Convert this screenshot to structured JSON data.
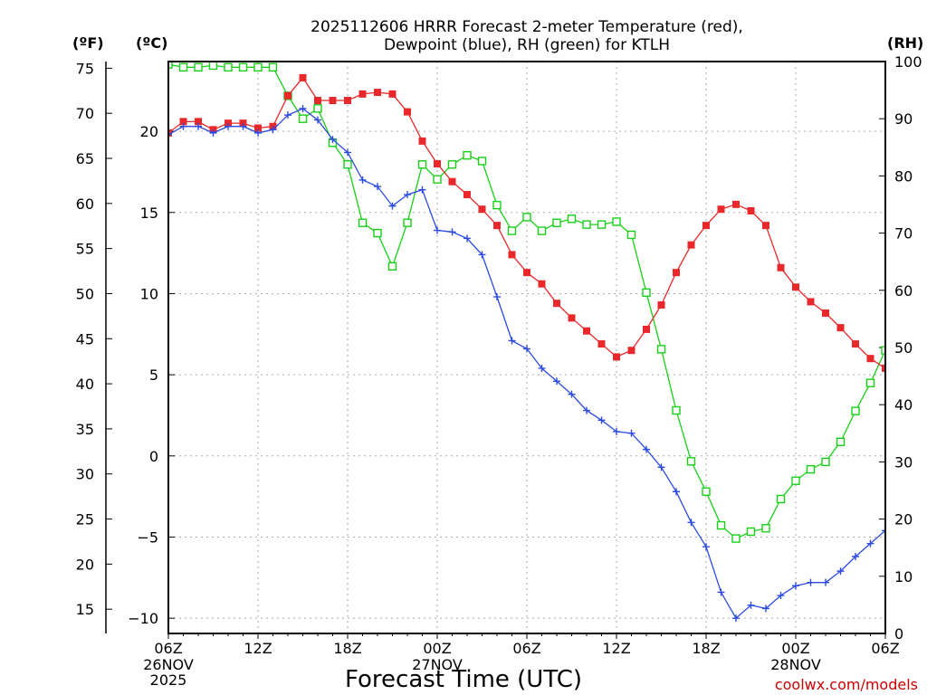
{
  "chart_data": {
    "type": "line",
    "title_line1": "2025112606 HRRR Forecast 2-meter Temperature (red),",
    "title_line2": "Dewpoint (blue), RH (green) for KTLH",
    "xlabel": "Forecast Time (UTC)",
    "credit": "coolwx.com/models",
    "units": {
      "fahrenheit": "(ºF)",
      "celsius": "(ºC)",
      "rh": "(RH)"
    },
    "x_hours_range": [
      0,
      48
    ],
    "x_ticks": [
      {
        "hour": 0,
        "label": "06Z",
        "date": "26NOV",
        "year": "2025"
      },
      {
        "hour": 6,
        "label": "12Z",
        "date": "",
        "year": ""
      },
      {
        "hour": 12,
        "label": "18Z",
        "date": "",
        "year": ""
      },
      {
        "hour": 18,
        "label": "00Z",
        "date": "27NOV",
        "year": ""
      },
      {
        "hour": 24,
        "label": "06Z",
        "date": "",
        "year": ""
      },
      {
        "hour": 30,
        "label": "12Z",
        "date": "",
        "year": ""
      },
      {
        "hour": 36,
        "label": "18Z",
        "date": "",
        "year": ""
      },
      {
        "hour": 42,
        "label": "00Z",
        "date": "28NOV",
        "year": ""
      },
      {
        "hour": 48,
        "label": "06Z",
        "date": "",
        "year": ""
      }
    ],
    "celsius_range": [
      -10.94,
      24.3
    ],
    "celsius_ticks": [
      {
        "value": 20,
        "label": "20"
      },
      {
        "value": 15,
        "label": "15"
      },
      {
        "value": 10,
        "label": "10"
      },
      {
        "value": 5,
        "label": "5"
      },
      {
        "value": 0,
        "label": "0"
      },
      {
        "value": -5,
        "label": "−5"
      },
      {
        "value": -10,
        "label": "−10"
      }
    ],
    "fahrenheit_ticks": [
      "15",
      "20",
      "25",
      "30",
      "35",
      "40",
      "45",
      "50",
      "55",
      "60",
      "65",
      "70",
      "75"
    ],
    "rh_range": [
      0,
      100
    ],
    "rh_ticks": [
      "0",
      "10",
      "20",
      "30",
      "40",
      "50",
      "60",
      "70",
      "80",
      "90",
      "100"
    ],
    "series": [
      {
        "name": "2-meter Temperature (°C)",
        "color": "#e8282b",
        "marker": "filled-square",
        "axis": "celsius",
        "x": [
          0,
          1,
          2,
          3,
          4,
          5,
          6,
          7,
          8,
          9,
          10,
          11,
          12,
          13,
          14,
          15,
          16,
          17,
          18,
          19,
          20,
          21,
          22,
          23,
          24,
          25,
          26,
          27,
          28,
          29,
          30,
          31,
          32,
          33,
          34,
          35,
          36,
          37,
          38,
          39,
          40,
          41,
          42,
          43,
          44,
          45,
          46,
          47,
          48
        ],
        "values": [
          19.9,
          20.6,
          20.6,
          20.1,
          20.5,
          20.5,
          20.2,
          20.3,
          22.2,
          23.3,
          21.9,
          21.9,
          21.9,
          22.3,
          22.4,
          22.3,
          21.2,
          19.4,
          18.0,
          16.9,
          16.1,
          15.2,
          14.2,
          12.4,
          11.3,
          10.6,
          9.4,
          8.5,
          7.7,
          6.9,
          6.1,
          6.5,
          7.8,
          9.3,
          11.3,
          13.0,
          14.2,
          15.2,
          15.5,
          15.1,
          14.2,
          11.6,
          10.4,
          9.5,
          8.8,
          7.9,
          6.9,
          6.0,
          5.4
        ]
      },
      {
        "name": "Dewpoint (°C)",
        "color": "#2d4be0",
        "marker": "plus",
        "axis": "celsius",
        "x": [
          0,
          1,
          2,
          3,
          4,
          5,
          6,
          7,
          8,
          9,
          10,
          11,
          12,
          13,
          14,
          15,
          16,
          17,
          18,
          19,
          20,
          21,
          22,
          23,
          24,
          25,
          26,
          27,
          28,
          29,
          30,
          31,
          32,
          33,
          34,
          35,
          36,
          37,
          38,
          39,
          40,
          41,
          42,
          43,
          44,
          45,
          46,
          47,
          48
        ],
        "values": [
          19.8,
          20.3,
          20.3,
          19.9,
          20.3,
          20.3,
          19.9,
          20.1,
          21.0,
          21.4,
          20.7,
          19.5,
          18.7,
          17.0,
          16.6,
          15.4,
          16.1,
          16.4,
          13.9,
          13.8,
          13.4,
          12.4,
          9.8,
          7.1,
          6.6,
          5.4,
          4.6,
          3.8,
          2.8,
          2.2,
          1.5,
          1.4,
          0.4,
          -0.7,
          -2.2,
          -4.1,
          -5.6,
          -8.4,
          -10.0,
          -9.2,
          -9.4,
          -8.6,
          -8.0,
          -7.8,
          -7.8,
          -7.1,
          -6.2,
          -5.4,
          -4.6
        ]
      },
      {
        "name": "RH (%)",
        "color": "#19d019",
        "marker": "open-square",
        "axis": "rh",
        "x": [
          0,
          1,
          2,
          3,
          4,
          5,
          6,
          7,
          8,
          9,
          10,
          11,
          12,
          13,
          14,
          15,
          16,
          17,
          18,
          19,
          20,
          21,
          22,
          23,
          24,
          25,
          26,
          27,
          28,
          29,
          30,
          31,
          32,
          33,
          34,
          35,
          36,
          37,
          38,
          39,
          40,
          41,
          42,
          43,
          44,
          45,
          46,
          47,
          48
        ],
        "values": [
          99.5,
          99.0,
          99.0,
          99.3,
          99.0,
          99.0,
          99.0,
          99.0,
          94.0,
          90.0,
          91.8,
          85.8,
          82.0,
          71.8,
          70.0,
          64.2,
          71.8,
          82.0,
          79.4,
          82.0,
          83.6,
          82.6,
          74.9,
          70.4,
          72.8,
          70.4,
          71.8,
          72.5,
          71.5,
          71.5,
          72.0,
          69.7,
          59.6,
          49.7,
          39.0,
          30.1,
          24.8,
          18.9,
          16.6,
          17.8,
          18.4,
          23.5,
          26.7,
          28.7,
          30.0,
          33.5,
          38.9,
          43.8,
          49.5
        ]
      }
    ]
  }
}
